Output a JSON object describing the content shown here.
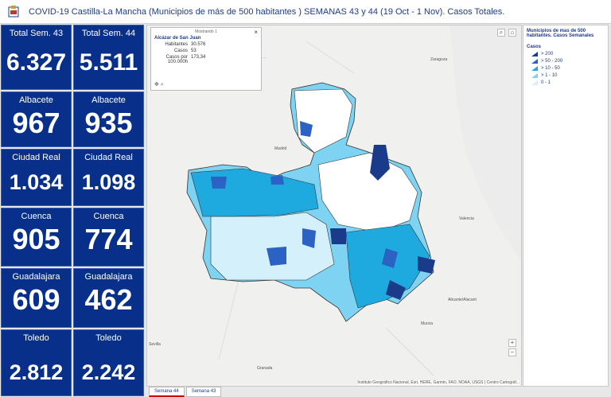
{
  "header": {
    "title": "COVID-19 Castilla-La Mancha (Municipios de más de 500 habitantes ) SEMANAS 43 y 44 (19 Oct - 1 Nov). Casos Totales."
  },
  "kpis": [
    {
      "label": "Total Sem. 43",
      "value": "6.327"
    },
    {
      "label": "Total Sem. 44",
      "value": "5.511"
    },
    {
      "label": "Albacete",
      "value": "967"
    },
    {
      "label": "Albacete",
      "value": "935"
    },
    {
      "label": "Ciudad Real",
      "value": "1.034"
    },
    {
      "label": "Ciudad Real",
      "value": "1.098"
    },
    {
      "label": "Cuenca",
      "value": "905"
    },
    {
      "label": "Cuenca",
      "value": "774"
    },
    {
      "label": "Guadalajara",
      "value": "609"
    },
    {
      "label": "Guadalajara",
      "value": "462"
    },
    {
      "label": "Toledo",
      "value": "2.812"
    },
    {
      "label": "Toledo",
      "value": "2.242"
    }
  ],
  "popup": {
    "header": "Mostrando 1",
    "title": "Alcázar de San Juan",
    "rows": [
      {
        "k": "Habitantes",
        "v": "30.576"
      },
      {
        "k": "Casos",
        "v": "53"
      },
      {
        "k": "Casos por 100.000h",
        "v": "173,34"
      }
    ],
    "close": "×"
  },
  "legend": {
    "title": "Municipios de mas de 500 habitantes. Casos Semanales",
    "subtitle": "Casos",
    "items": [
      {
        "label": "> 200",
        "color": "#1a3a8a"
      },
      {
        "label": "> 50 - 200",
        "color": "#2b62c4"
      },
      {
        "label": "> 10 - 50",
        "color": "#1eaadf"
      },
      {
        "label": "> 1 - 10",
        "color": "#7fd3f2"
      },
      {
        "label": "0 - 1",
        "color": "#d4f0fb"
      }
    ]
  },
  "tabs": [
    "Semana 44",
    "Semana 43"
  ],
  "map": {
    "attribution": "Instituto Geográfico Nacional, Esri, HERE, Garmin, FAO, NOAA, USGS | Centro Cartográf...",
    "zoom_in": "+",
    "zoom_out": "−",
    "cities": [
      "Madrid",
      "Zaragoza",
      "Valencia",
      "Sevilla",
      "Murcia",
      "Alicante/Alacant",
      "Granada"
    ]
  }
}
